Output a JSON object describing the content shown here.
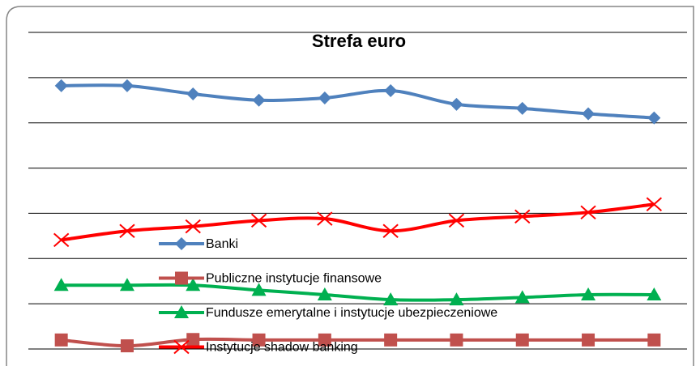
{
  "chart_data": {
    "type": "line",
    "title": "Strefa euro",
    "categories": [
      null,
      null,
      null,
      null,
      null,
      null,
      null,
      null,
      null,
      null
    ],
    "series": [
      {
        "name": "Banki",
        "color": "#4f81bd",
        "marker": "diamond",
        "values": [
          5.82,
          5.82,
          5.64,
          5.5,
          5.55,
          5.71,
          5.41,
          5.32,
          5.2,
          5.11
        ]
      },
      {
        "name": "Publiczne instytucje finansowe",
        "color": "#c0504d",
        "marker": "square",
        "values": [
          0.2,
          0.07,
          0.21,
          0.2,
          0.2,
          0.2,
          0.2,
          0.2,
          0.2,
          0.2
        ]
      },
      {
        "name": "Fundusze emerytalne i instytucje ubezpieczeniowe",
        "color": "#00b050",
        "marker": "triangle",
        "values": [
          1.41,
          1.41,
          1.41,
          1.3,
          1.2,
          1.09,
          1.09,
          1.14,
          1.2,
          1.2
        ]
      },
      {
        "name": "Instytucje shadow banking",
        "color": "#ff0000",
        "marker": "x",
        "values": [
          2.41,
          2.61,
          2.71,
          2.84,
          2.88,
          2.61,
          2.84,
          2.93,
          3.02,
          3.2
        ]
      }
    ],
    "ylim": [
      0,
      7
    ],
    "yticks": [
      0,
      1,
      2,
      3,
      4,
      5,
      6,
      7
    ],
    "grid": true
  }
}
